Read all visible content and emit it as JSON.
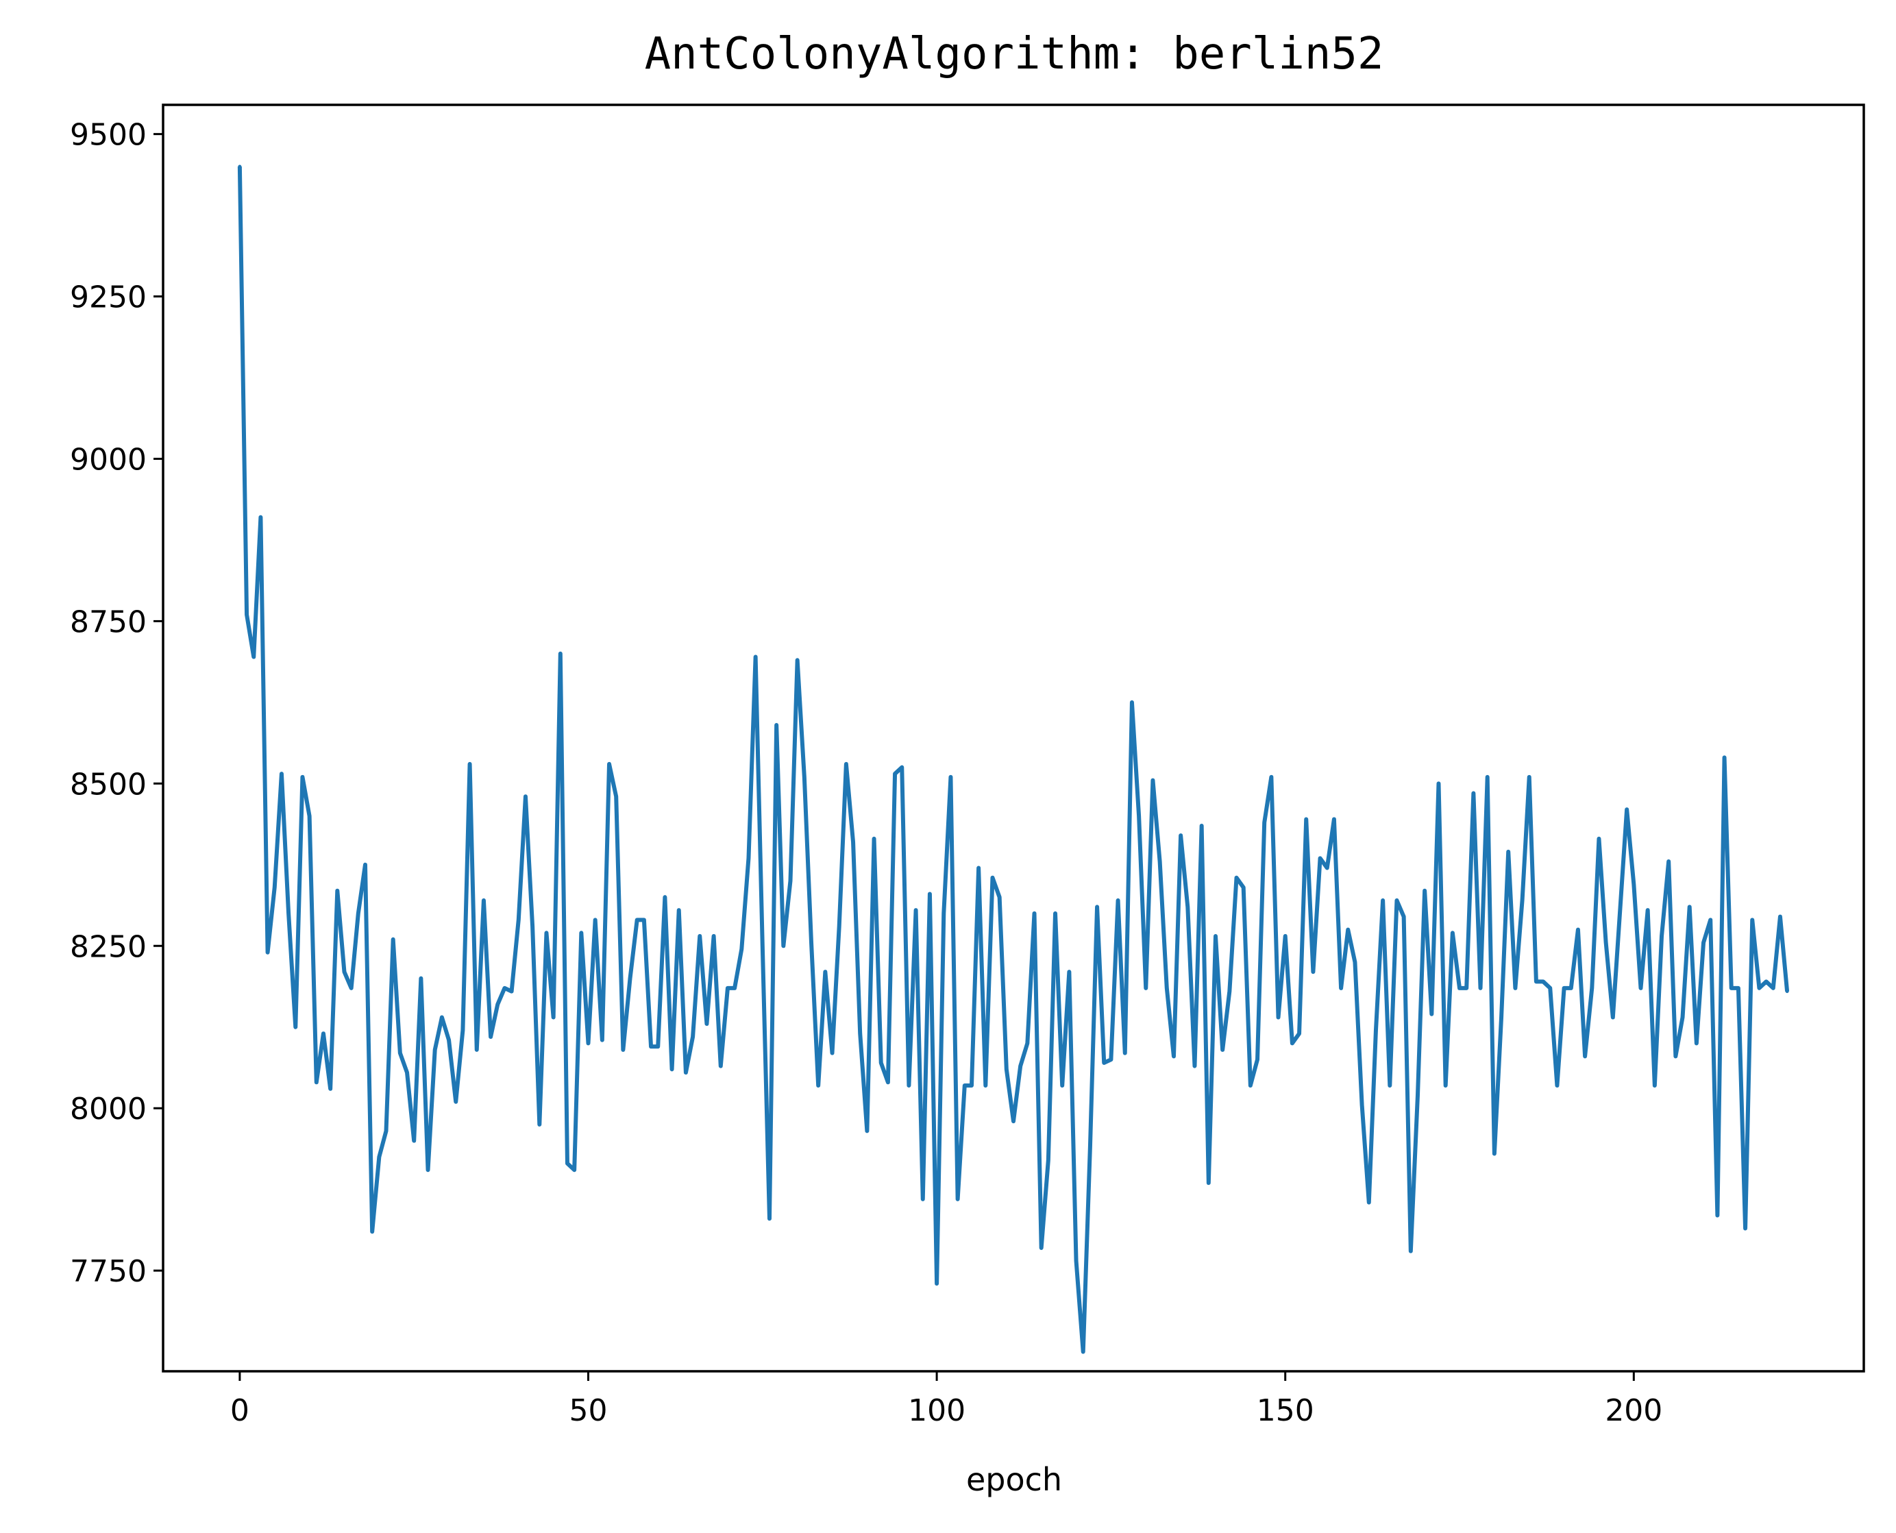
{
  "chart_data": {
    "type": "line",
    "title": "AntColonyAlgorithm: berlin52",
    "xlabel": "epoch",
    "ylabel": "",
    "xlim": [
      -11,
      233
    ],
    "ylim": [
      7595,
      9545
    ],
    "xticks": [
      0,
      50,
      100,
      150,
      200
    ],
    "yticks": [
      7750,
      8000,
      8250,
      8500,
      8750,
      9000,
      9250,
      9500
    ],
    "grid": false,
    "series": [
      {
        "name": "berlin52",
        "color": "#1f77b4",
        "x": [
          0,
          1,
          2,
          3,
          4,
          5,
          6,
          7,
          8,
          9,
          10,
          11,
          12,
          13,
          14,
          15,
          16,
          17,
          18,
          19,
          20,
          21,
          22,
          23,
          24,
          25,
          26,
          27,
          28,
          29,
          30,
          31,
          32,
          33,
          34,
          35,
          36,
          37,
          38,
          39,
          40,
          41,
          42,
          43,
          44,
          45,
          46,
          47,
          48,
          49,
          50,
          51,
          52,
          53,
          54,
          55,
          56,
          57,
          58,
          59,
          60,
          61,
          62,
          63,
          64,
          65,
          66,
          67,
          68,
          69,
          70,
          71,
          72,
          73,
          74,
          75,
          76,
          77,
          78,
          79,
          80,
          81,
          82,
          83,
          84,
          85,
          86,
          87,
          88,
          89,
          90,
          91,
          92,
          93,
          94,
          95,
          96,
          97,
          98,
          99,
          100,
          101,
          102,
          103,
          104,
          105,
          106,
          107,
          108,
          109,
          110,
          111,
          112,
          113,
          114,
          115,
          116,
          117,
          118,
          119,
          120,
          121,
          122,
          123,
          124,
          125,
          126,
          127,
          128,
          129,
          130,
          131,
          132,
          133,
          134,
          135,
          136,
          137,
          138,
          139,
          140,
          141,
          142,
          143,
          144,
          145,
          146,
          147,
          148,
          149,
          150,
          151,
          152,
          153,
          154,
          155,
          156,
          157,
          158,
          159,
          160,
          161,
          162,
          163,
          164,
          165,
          166,
          167,
          168,
          169,
          170,
          171,
          172,
          173,
          174,
          175,
          176,
          177,
          178,
          179,
          180,
          181,
          182,
          183,
          184,
          185,
          186,
          187,
          188,
          189,
          190,
          191,
          192,
          193,
          194,
          195,
          196,
          197,
          198,
          199,
          200,
          201,
          202,
          203,
          204,
          205,
          206,
          207,
          208,
          209,
          210,
          211,
          212,
          213,
          214,
          215,
          216,
          217,
          218,
          219,
          220,
          221,
          222
        ],
        "values": [
          9450,
          8760,
          8695,
          8910,
          8240,
          8340,
          8515,
          8300,
          8125,
          8510,
          8450,
          8040,
          8115,
          8030,
          8335,
          8210,
          8185,
          8300,
          8375,
          7810,
          7925,
          7965,
          8260,
          8085,
          8055,
          7950,
          8200,
          7905,
          8090,
          8140,
          8105,
          8010,
          8120,
          8530,
          8090,
          8320,
          8110,
          8160,
          8185,
          8180,
          8290,
          8480,
          8280,
          7975,
          8270,
          8140,
          8700,
          7915,
          7905,
          8270,
          8100,
          8290,
          8105,
          8530,
          8480,
          8090,
          8200,
          8290,
          8290,
          8095,
          8095,
          8325,
          8060,
          8305,
          8055,
          8110,
          8265,
          8130,
          8265,
          8065,
          8185,
          8185,
          8245,
          8385,
          8695,
          8250,
          7830,
          8590,
          8250,
          8350,
          8690,
          8510,
          8255,
          8035,
          8210,
          8085,
          8280,
          8530,
          8410,
          8115,
          7965,
          8415,
          8070,
          8040,
          8515,
          8525,
          8035,
          8305,
          7860,
          8330,
          7730,
          8300,
          8510,
          7860,
          8035,
          8035,
          8370,
          8035,
          8355,
          8325,
          8060,
          7980,
          8065,
          8100,
          8300,
          7785,
          7920,
          8300,
          8035,
          8210,
          7765,
          7625,
          7940,
          8310,
          8070,
          8075,
          8320,
          8085,
          8625,
          8450,
          8185,
          8505,
          8380,
          8185,
          8080,
          8420,
          8310,
          8065,
          8435,
          7885,
          8265,
          8090,
          8180,
          8355,
          8340,
          8035,
          8075,
          8440,
          8510,
          8140,
          8265,
          8100,
          8115,
          8445,
          8210,
          8385,
          8370,
          8445,
          8185,
          8275,
          8225,
          8005,
          7855,
          8120,
          8320,
          8035,
          8320,
          8295,
          7780,
          8020,
          8335,
          8145,
          8500,
          8035,
          8270,
          8185,
          8185,
          8485,
          8185,
          8510,
          7930,
          8140,
          8395,
          8185,
          8320,
          8510,
          8195,
          8195,
          8185,
          8035,
          8185,
          8185,
          8275,
          8080,
          8185,
          8415,
          8255,
          8140,
          8300,
          8460,
          8345,
          8185,
          8305,
          8035,
          8265,
          8380,
          8080,
          8140,
          8310,
          8100,
          8255,
          8290,
          7835,
          8540,
          8185,
          8185,
          7815,
          8290,
          8185,
          8195,
          8185,
          8295,
          8180
        ]
      }
    ]
  }
}
